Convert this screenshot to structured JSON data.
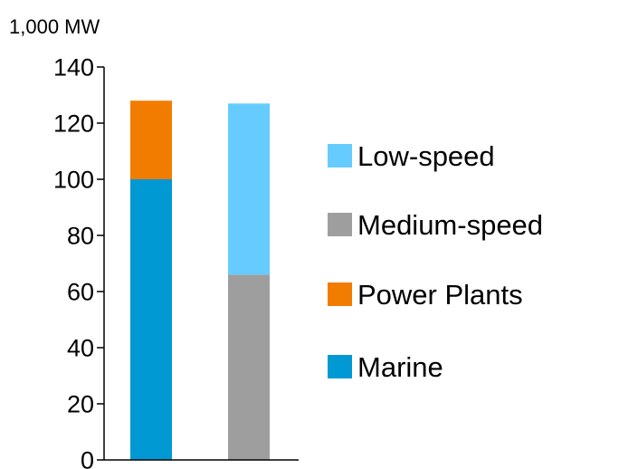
{
  "chart_data": {
    "type": "bar",
    "stacked": true,
    "unit_label": "1,000 MW",
    "title": "",
    "xlabel": "",
    "ylabel": "",
    "ylim": [
      0,
      140
    ],
    "yticks": [
      0,
      20,
      40,
      60,
      80,
      100,
      120,
      140
    ],
    "grid": false,
    "legend_position": "right",
    "categories": [
      "",
      ""
    ],
    "series": [
      {
        "name": "Marine",
        "color": "#0099d4",
        "values": [
          100,
          0
        ]
      },
      {
        "name": "Power Plants",
        "color": "#f27c00",
        "values": [
          28,
          0
        ]
      },
      {
        "name": "Medium-speed",
        "color": "#9e9e9e",
        "values": [
          0,
          66
        ]
      },
      {
        "name": "Low-speed",
        "color": "#66ccff",
        "values": [
          0,
          61
        ]
      }
    ],
    "legend_order": [
      "Low-speed",
      "Medium-speed",
      "Power Plants",
      "Marine"
    ]
  }
}
